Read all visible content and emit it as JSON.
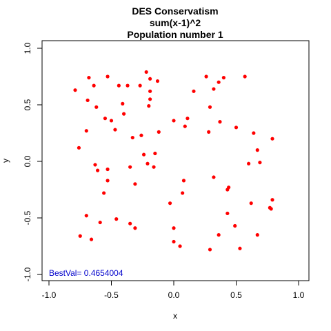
{
  "chart_data": {
    "type": "scatter",
    "title_lines": [
      "DES Conservatism",
      "sum(x-1)^2",
      "Population number 1"
    ],
    "xlabel": "x",
    "ylabel": "y",
    "xlim": [
      -1.0,
      1.0
    ],
    "ylim": [
      -1.0,
      1.0
    ],
    "x_ticks": [
      "-1.0",
      "-0.5",
      "0.0",
      "0.5",
      "1.0"
    ],
    "y_ticks": [
      "-1.0",
      "-0.5",
      "0.0",
      "0.5",
      "1.0"
    ],
    "annotation": "BestVal= 0.4654004",
    "grid": false,
    "legend": "none",
    "point_color": "#ff0000",
    "annotation_color": "#0000cc",
    "points": [
      [
        -0.79,
        0.63
      ],
      [
        -0.68,
        0.74
      ],
      [
        -0.64,
        0.67
      ],
      [
        -0.53,
        0.75
      ],
      [
        -0.44,
        0.67
      ],
      [
        -0.37,
        0.67
      ],
      [
        -0.27,
        0.67
      ],
      [
        -0.22,
        0.79
      ],
      [
        -0.19,
        0.73
      ],
      [
        -0.13,
        0.71
      ],
      [
        -0.19,
        0.62
      ],
      [
        -0.69,
        0.54
      ],
      [
        -0.62,
        0.48
      ],
      [
        -0.41,
        0.51
      ],
      [
        -0.19,
        0.55
      ],
      [
        -0.2,
        0.49
      ],
      [
        -0.4,
        0.42
      ],
      [
        -0.55,
        0.38
      ],
      [
        -0.5,
        0.36
      ],
      [
        -0.47,
        0.28
      ],
      [
        -0.7,
        0.27
      ],
      [
        -0.33,
        0.21
      ],
      [
        -0.26,
        0.23
      ],
      [
        -0.76,
        0.12
      ],
      [
        -0.24,
        0.06
      ],
      [
        -0.15,
        0.07
      ],
      [
        -0.63,
        -0.03
      ],
      [
        -0.61,
        -0.08
      ],
      [
        -0.53,
        -0.07
      ],
      [
        -0.35,
        -0.05
      ],
      [
        -0.21,
        -0.02
      ],
      [
        -0.16,
        -0.05
      ],
      [
        -0.53,
        -0.17
      ],
      [
        -0.31,
        -0.2
      ],
      [
        -0.56,
        -0.28
      ],
      [
        -0.12,
        0.26
      ],
      [
        -0.7,
        -0.48
      ],
      [
        -0.59,
        -0.54
      ],
      [
        -0.46,
        -0.51
      ],
      [
        -0.35,
        -0.55
      ],
      [
        -0.31,
        -0.59
      ],
      [
        -0.75,
        -0.66
      ],
      [
        -0.66,
        -0.69
      ],
      [
        0.16,
        0.62
      ],
      [
        0.26,
        0.75
      ],
      [
        0.32,
        0.64
      ],
      [
        0.36,
        0.7
      ],
      [
        0.4,
        0.74
      ],
      [
        0.57,
        0.75
      ],
      [
        0.29,
        0.48
      ],
      [
        0.0,
        0.36
      ],
      [
        0.11,
        0.38
      ],
      [
        0.09,
        0.31
      ],
      [
        0.37,
        0.35
      ],
      [
        0.28,
        0.26
      ],
      [
        0.5,
        0.3
      ],
      [
        0.64,
        0.25
      ],
      [
        0.79,
        0.2
      ],
      [
        0.67,
        0.1
      ],
      [
        0.6,
        -0.02
      ],
      [
        0.69,
        -0.01
      ],
      [
        0.08,
        -0.17
      ],
      [
        0.32,
        -0.14
      ],
      [
        0.44,
        -0.23
      ],
      [
        0.43,
        -0.25
      ],
      [
        0.07,
        -0.28
      ],
      [
        -0.03,
        -0.37
      ],
      [
        0.62,
        -0.37
      ],
      [
        0.79,
        -0.34
      ],
      [
        0.77,
        -0.41
      ],
      [
        0.78,
        -0.42
      ],
      [
        0.43,
        -0.46
      ],
      [
        0.49,
        -0.57
      ],
      [
        0.36,
        -0.65
      ],
      [
        0.67,
        -0.65
      ],
      [
        0.0,
        -0.59
      ],
      [
        0.0,
        -0.71
      ],
      [
        0.05,
        -0.75
      ],
      [
        0.29,
        -0.78
      ],
      [
        0.53,
        -0.77
      ]
    ]
  }
}
